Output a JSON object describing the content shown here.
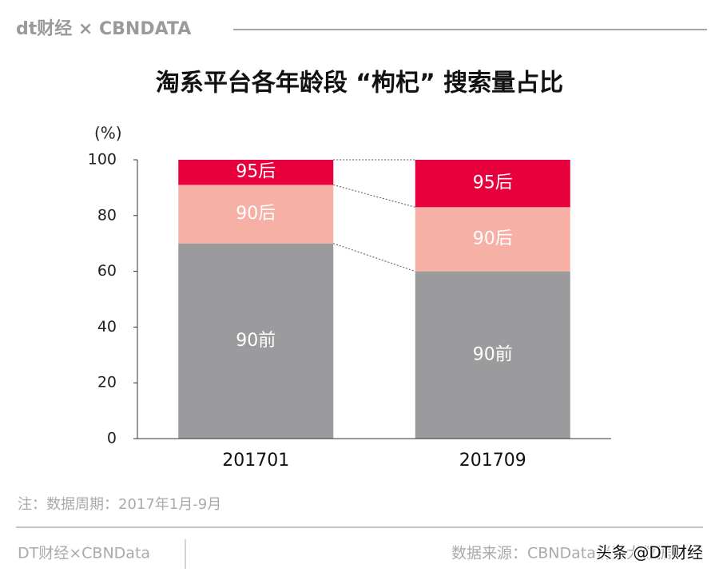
{
  "header": {
    "logo": "dt财经 × CBNDATA"
  },
  "chart_data": {
    "type": "bar",
    "stacked": true,
    "title": "淘系平台各年龄段 “枸杞” 搜索量占比",
    "y_unit": "(%)",
    "categories": [
      "201701",
      "201709"
    ],
    "series": [
      {
        "name": "90前",
        "color": "#9b9a9c",
        "values": [
          70,
          60
        ]
      },
      {
        "name": "90后",
        "color": "#f7b0a5",
        "values": [
          21,
          23
        ]
      },
      {
        "name": "95后",
        "color": "#e8003c",
        "values": [
          9,
          17
        ]
      }
    ],
    "ylim": [
      0,
      100
    ],
    "yticks": [
      0,
      20,
      40,
      60,
      80,
      100
    ],
    "note": "注：数据周期：2017年1月-9月"
  },
  "footer": {
    "left": "DT财经×CBNData",
    "source": "数据来源：CBNData消费大数据",
    "watermark": "头条 @DT财经"
  }
}
